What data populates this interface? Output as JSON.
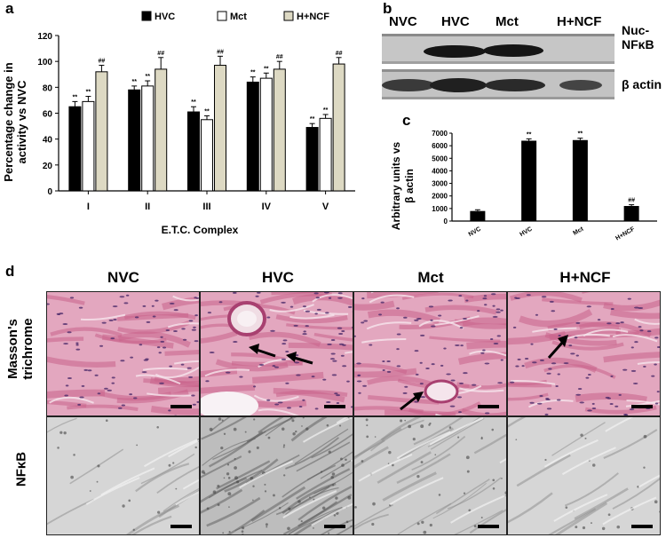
{
  "panels": {
    "a": "a",
    "b": "b",
    "c": "c",
    "d": "d"
  },
  "chart_data": [
    {
      "panel": "a",
      "type": "bar",
      "categories": [
        "I",
        "II",
        "III",
        "IV",
        "V"
      ],
      "series": [
        {
          "name": "HVC",
          "values": [
            65,
            78,
            61,
            84,
            49
          ],
          "errors": [
            4,
            3,
            4,
            4,
            3
          ],
          "color": "#000000"
        },
        {
          "name": "Mct",
          "values": [
            69,
            81,
            55,
            87,
            56
          ],
          "errors": [
            4,
            4,
            3,
            4,
            3
          ],
          "color": "#ffffff"
        },
        {
          "name": "H+NCF",
          "values": [
            92,
            94,
            97,
            94,
            98
          ],
          "errors": [
            5,
            9,
            7,
            6,
            5
          ],
          "color": "#ddd9c3"
        }
      ],
      "annotations": [
        [
          "**",
          "**",
          "##"
        ],
        [
          "**",
          "**",
          "##"
        ],
        [
          "**",
          "**",
          "##"
        ],
        [
          "**",
          "**",
          "##"
        ],
        [
          "**",
          "**",
          "##"
        ]
      ],
      "ylabel": "Percentage change in activity vs NVC",
      "ylabel_line1": "Percentage change in",
      "ylabel_line2": "activity vs NVC",
      "xlabel": "E.T.C. Complex",
      "ylim": [
        0,
        120
      ],
      "yticks": [
        "0",
        "20",
        "40",
        "60",
        "80",
        "100",
        "120"
      ],
      "legend_position": "top"
    },
    {
      "panel": "c",
      "type": "bar",
      "categories": [
        "NVC",
        "HVC",
        "Mct",
        "H+NCF"
      ],
      "values": [
        800,
        6400,
        6450,
        1200
      ],
      "errors": [
        100,
        150,
        150,
        100
      ],
      "annotations": [
        "",
        "**",
        "**",
        "##"
      ],
      "ylabel_line1": "Arbitrary units vs",
      "ylabel_line2": "β actin",
      "ylim": [
        0,
        7000
      ],
      "yticks": [
        "0",
        "1000",
        "2000",
        "3000",
        "4000",
        "5000",
        "6000",
        "7000"
      ]
    }
  ],
  "blot": {
    "lanes": [
      "NVC",
      "HVC",
      "Mct",
      "H+NCF"
    ],
    "rows": [
      {
        "label_line1": "Nuc-",
        "label_line2": "NFκB"
      },
      {
        "label_line1": "β actin",
        "label_line2": ""
      }
    ]
  },
  "histology": {
    "columns": [
      "NVC",
      "HVC",
      "Mct",
      "H+NCF"
    ],
    "rows": [
      {
        "label_line1": "Masson's",
        "label_line2": "trichrome"
      },
      {
        "label_line1": "NFκB",
        "label_line2": ""
      }
    ]
  },
  "colors": {
    "trichrome_bg": "#e3a7bf",
    "trichrome_fiber": "#c8628a",
    "trichrome_nucleus": "#4b2a6a",
    "ihc_bg": "#d6d6d6",
    "hnfc_bar": "#ddd9c3"
  }
}
